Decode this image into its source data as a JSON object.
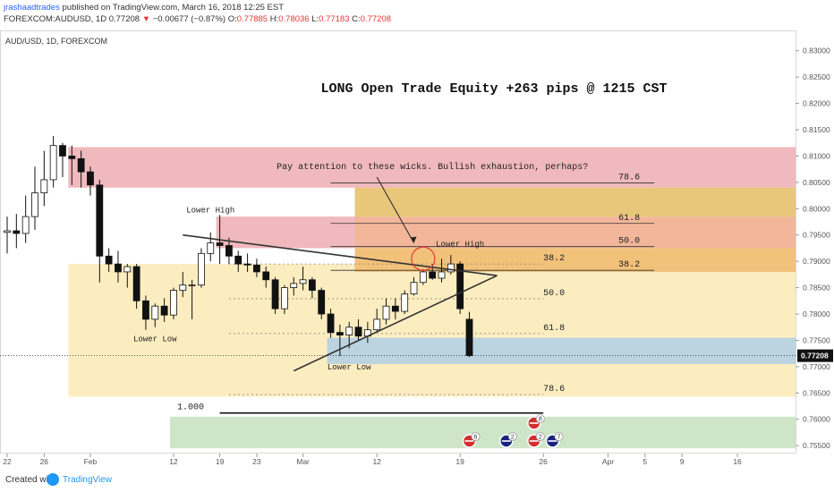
{
  "header": {
    "author": "jrashaadtrades",
    "published": " published on TradingView.com, March 16, 2018 12:25 EST",
    "symbol_line": "FOREXCOM:AUDUSD, 1D 0.77208",
    "change_arrow": "▼",
    "change": "−0.00677 (−0.87%)",
    "ohlc": [
      {
        "k": "O:",
        "v": "0.77885"
      },
      {
        "k": "H:",
        "v": "0.78036"
      },
      {
        "k": "L:",
        "v": "0.77183"
      },
      {
        "k": "C:",
        "v": "0.77208"
      }
    ]
  },
  "footer": {
    "created": "Created with",
    "brand": "TradingView"
  },
  "chart_data": {
    "type": "candlestick",
    "legend": "AUD/USD, 1D, FOREXCOM",
    "title": "LONG Open Trade Equity +263 pips @ 1215 CST",
    "y_axis": {
      "side": "right",
      "range": [
        0.7535,
        0.8325
      ],
      "ticks": [
        "0.83000",
        "0.82500",
        "0.82000",
        "0.81500",
        "0.81000",
        "0.80500",
        "0.80000",
        "0.79500",
        "0.79000",
        "0.78500",
        "0.78000",
        "0.77500",
        "0.77000",
        "0.76500",
        "0.76000",
        "0.75500"
      ],
      "last_price": "0.77208",
      "last_value": 0.77208
    },
    "x_axis": {
      "bars": 86,
      "ticks": [
        {
          "label": "22",
          "bar": 0
        },
        {
          "label": "26",
          "bar": 4
        },
        {
          "label": "Feb",
          "bar": 9
        },
        {
          "label": "12",
          "bar": 18
        },
        {
          "label": "19",
          "bar": 23
        },
        {
          "label": "23",
          "bar": 27
        },
        {
          "label": "Mar",
          "bar": 32
        },
        {
          "label": "12",
          "bar": 40
        },
        {
          "label": "19",
          "bar": 49
        },
        {
          "label": "26",
          "bar": 58
        },
        {
          "label": "Apr",
          "bar": 65
        },
        {
          "label": "5",
          "bar": 69
        },
        {
          "label": "9",
          "bar": 73
        },
        {
          "label": "16",
          "bar": 79
        }
      ]
    },
    "candles": [
      {
        "o": 0.7955,
        "h": 0.7985,
        "l": 0.7915,
        "c": 0.7958
      },
      {
        "o": 0.7958,
        "h": 0.799,
        "l": 0.7925,
        "c": 0.7953
      },
      {
        "o": 0.7953,
        "h": 0.8025,
        "l": 0.7935,
        "c": 0.7985
      },
      {
        "o": 0.7985,
        "h": 0.808,
        "l": 0.796,
        "c": 0.803
      },
      {
        "o": 0.803,
        "h": 0.811,
        "l": 0.8005,
        "c": 0.8055
      },
      {
        "o": 0.8055,
        "h": 0.8138,
        "l": 0.804,
        "c": 0.812
      },
      {
        "o": 0.812,
        "h": 0.8125,
        "l": 0.806,
        "c": 0.81
      },
      {
        "o": 0.81,
        "h": 0.812,
        "l": 0.8045,
        "c": 0.8095
      },
      {
        "o": 0.8095,
        "h": 0.811,
        "l": 0.804,
        "c": 0.807
      },
      {
        "o": 0.807,
        "h": 0.808,
        "l": 0.8025,
        "c": 0.8045
      },
      {
        "o": 0.8045,
        "h": 0.8055,
        "l": 0.786,
        "c": 0.791
      },
      {
        "o": 0.791,
        "h": 0.7925,
        "l": 0.788,
        "c": 0.7895
      },
      {
        "o": 0.7895,
        "h": 0.792,
        "l": 0.786,
        "c": 0.788
      },
      {
        "o": 0.788,
        "h": 0.7895,
        "l": 0.785,
        "c": 0.789
      },
      {
        "o": 0.789,
        "h": 0.7895,
        "l": 0.781,
        "c": 0.7825
      },
      {
        "o": 0.7825,
        "h": 0.7835,
        "l": 0.777,
        "c": 0.779
      },
      {
        "o": 0.779,
        "h": 0.782,
        "l": 0.7775,
        "c": 0.7815
      },
      {
        "o": 0.7815,
        "h": 0.783,
        "l": 0.7785,
        "c": 0.7798
      },
      {
        "o": 0.7798,
        "h": 0.785,
        "l": 0.779,
        "c": 0.7845
      },
      {
        "o": 0.7845,
        "h": 0.788,
        "l": 0.7832,
        "c": 0.7855
      },
      {
        "o": 0.7855,
        "h": 0.7865,
        "l": 0.779,
        "c": 0.7855
      },
      {
        "o": 0.7855,
        "h": 0.7925,
        "l": 0.785,
        "c": 0.7915
      },
      {
        "o": 0.7915,
        "h": 0.7955,
        "l": 0.79,
        "c": 0.7935
      },
      {
        "o": 0.7935,
        "h": 0.7988,
        "l": 0.7895,
        "c": 0.793
      },
      {
        "o": 0.793,
        "h": 0.7945,
        "l": 0.7895,
        "c": 0.791
      },
      {
        "o": 0.791,
        "h": 0.792,
        "l": 0.788,
        "c": 0.7895
      },
      {
        "o": 0.7895,
        "h": 0.7915,
        "l": 0.788,
        "c": 0.7893
      },
      {
        "o": 0.7893,
        "h": 0.7905,
        "l": 0.787,
        "c": 0.788
      },
      {
        "o": 0.788,
        "h": 0.789,
        "l": 0.785,
        "c": 0.7865
      },
      {
        "o": 0.7865,
        "h": 0.787,
        "l": 0.78,
        "c": 0.781
      },
      {
        "o": 0.781,
        "h": 0.7855,
        "l": 0.78,
        "c": 0.785
      },
      {
        "o": 0.785,
        "h": 0.787,
        "l": 0.7835,
        "c": 0.7858
      },
      {
        "o": 0.7858,
        "h": 0.789,
        "l": 0.7845,
        "c": 0.7865
      },
      {
        "o": 0.7865,
        "h": 0.787,
        "l": 0.783,
        "c": 0.7845
      },
      {
        "o": 0.7845,
        "h": 0.785,
        "l": 0.779,
        "c": 0.78
      },
      {
        "o": 0.78,
        "h": 0.781,
        "l": 0.7755,
        "c": 0.7765
      },
      {
        "o": 0.7765,
        "h": 0.778,
        "l": 0.772,
        "c": 0.776
      },
      {
        "o": 0.776,
        "h": 0.7785,
        "l": 0.7735,
        "c": 0.7775
      },
      {
        "o": 0.7775,
        "h": 0.779,
        "l": 0.775,
        "c": 0.7758
      },
      {
        "o": 0.7758,
        "h": 0.7785,
        "l": 0.7745,
        "c": 0.777
      },
      {
        "o": 0.777,
        "h": 0.781,
        "l": 0.7765,
        "c": 0.779
      },
      {
        "o": 0.779,
        "h": 0.783,
        "l": 0.778,
        "c": 0.7815
      },
      {
        "o": 0.7815,
        "h": 0.783,
        "l": 0.779,
        "c": 0.7805
      },
      {
        "o": 0.7805,
        "h": 0.7845,
        "l": 0.78,
        "c": 0.7838
      },
      {
        "o": 0.7838,
        "h": 0.787,
        "l": 0.7835,
        "c": 0.786
      },
      {
        "o": 0.786,
        "h": 0.7885,
        "l": 0.7855,
        "c": 0.788
      },
      {
        "o": 0.788,
        "h": 0.7895,
        "l": 0.7865,
        "c": 0.7868
      },
      {
        "o": 0.7868,
        "h": 0.7905,
        "l": 0.786,
        "c": 0.788
      },
      {
        "o": 0.788,
        "h": 0.7912,
        "l": 0.7875,
        "c": 0.7895
      },
      {
        "o": 0.7895,
        "h": 0.79,
        "l": 0.78,
        "c": 0.781
      },
      {
        "o": 0.779,
        "h": 0.7804,
        "l": 0.7718,
        "c": 0.7721
      }
    ],
    "zones": [
      {
        "name": "red-zone-upper",
        "from": 0.804,
        "to": 0.8117,
        "bar_from": 7,
        "bar_to": 86,
        "color": "#f0b9bd"
      },
      {
        "name": "red-zone-lower-high",
        "from": 0.7925,
        "to": 0.7985,
        "bar_from": 23,
        "bar_to": 38,
        "color": "#f0b9bd"
      },
      {
        "name": "red-zone-overlap",
        "from": 0.7925,
        "to": 0.7985,
        "bar_from": 38,
        "bar_to": 86,
        "color": "#f2b79a"
      },
      {
        "name": "yellow-zone-large",
        "from": 0.7643,
        "to": 0.7895,
        "bar_from": 7,
        "bar_to": 86,
        "color": "#fcedc0"
      },
      {
        "name": "gold-zone",
        "from": 0.7985,
        "to": 0.804,
        "bar_from": 38,
        "bar_to": 86,
        "color": "#e8c77a"
      },
      {
        "name": "orange-zone",
        "from": 0.788,
        "to": 0.7925,
        "bar_from": 38,
        "bar_to": 86,
        "color": "#f2c27a"
      },
      {
        "name": "blue-zone",
        "from": 0.7705,
        "to": 0.7755,
        "bar_from": 35,
        "bar_to": 86,
        "color": "#bcd3e0"
      },
      {
        "name": "green-zone",
        "from": 0.7545,
        "to": 0.7605,
        "bar_from": 18,
        "bar_to": 86,
        "color": "#cfe5c8"
      }
    ],
    "fib_upper": [
      {
        "label": "78.6",
        "value": 0.8049
      },
      {
        "label": "61.8",
        "value": 0.7972
      },
      {
        "label": "50.0",
        "value": 0.7928
      },
      {
        "label": "38.2",
        "value": 0.7883
      }
    ],
    "fib_lower": [
      {
        "label": "38.2",
        "value": 0.7895
      },
      {
        "label": "50.0",
        "value": 0.7829
      },
      {
        "label": "61.8",
        "value": 0.7763
      },
      {
        "label": "78.6",
        "value": 0.7647
      },
      {
        "label": "1.000",
        "value": 0.7612
      }
    ],
    "trendlines": [
      {
        "name": "upper-trendline",
        "from": {
          "bar": 19,
          "price": 0.795
        },
        "to": {
          "bar": 53,
          "price": 0.7873
        }
      },
      {
        "name": "lower-trendline",
        "from": {
          "bar": 31,
          "price": 0.7692
        },
        "to": {
          "bar": 53,
          "price": 0.7873
        }
      }
    ],
    "annotations": [
      {
        "name": "note-wicks",
        "text": "Pay attention to these wicks. Bullish exhaustion, perhaps?",
        "bar": 46,
        "price": 0.8075
      },
      {
        "name": "label-lower-high-1",
        "text": "Lower High",
        "bar": 22,
        "price": 0.7993
      },
      {
        "name": "label-lower-high-2",
        "text": "Lower High",
        "bar": 49,
        "price": 0.7928
      },
      {
        "name": "label-lower-low-1",
        "text": "Lower Low",
        "bar": 16,
        "price": 0.7748
      },
      {
        "name": "label-lower-low-2",
        "text": "Lower Low",
        "bar": 37,
        "price": 0.7695
      }
    ],
    "events": [
      {
        "flag": "us",
        "count": "6",
        "bar": 50,
        "row": 1
      },
      {
        "flag": "us",
        "count": "8",
        "bar": 57,
        "row": 0
      },
      {
        "flag": "au",
        "count": "2",
        "bar": 54,
        "row": 1
      },
      {
        "flag": "us",
        "count": "2",
        "bar": 57,
        "row": 1
      },
      {
        "flag": "au",
        "count": "7",
        "bar": 59,
        "row": 1
      }
    ]
  }
}
